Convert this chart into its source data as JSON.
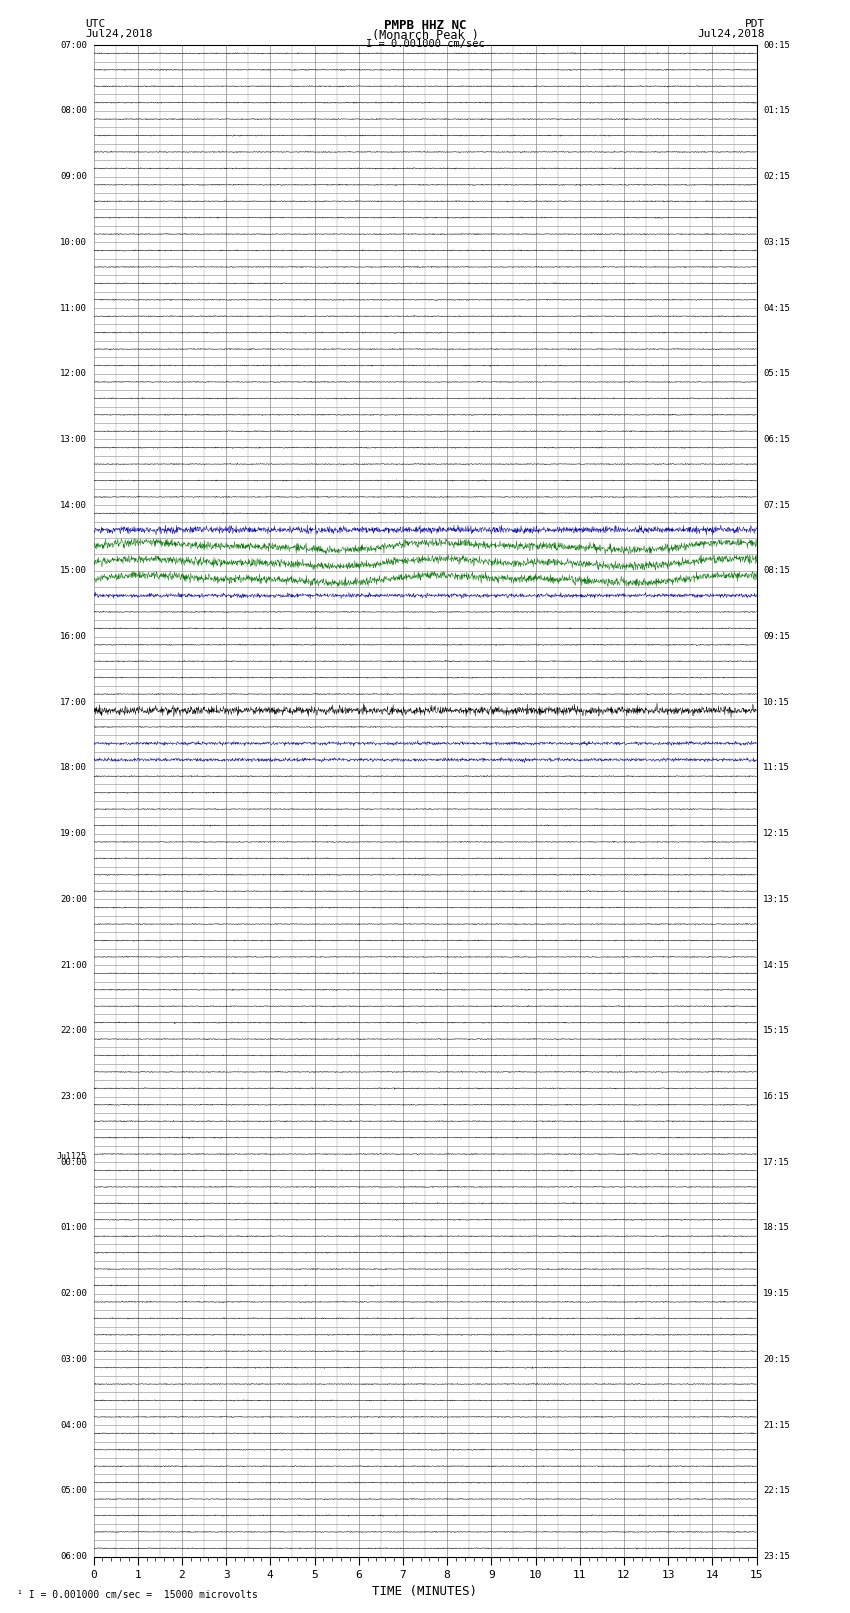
{
  "title_line1": "PMPB HHZ NC",
  "title_line2": "(Monarch Peak )",
  "scale_label": "I = 0.001000 cm/sec",
  "left_label_top": "UTC",
  "left_label_date": "Jul24,2018",
  "right_label_top": "PDT",
  "right_label_date": "Jul24,2018",
  "xlabel": "TIME (MINUTES)",
  "bottom_note": "¹ I = 0.001000 cm/sec =  15000 microvolts",
  "bg_color": "#ffffff",
  "grid_color": "#888888",
  "noise_color": "#000000",
  "event_color_blue": "#0000bb",
  "event_color_green": "#007700",
  "event_color_red": "#bb0000",
  "xmin": 0,
  "xmax": 15,
  "xticks": [
    0,
    1,
    2,
    3,
    4,
    5,
    6,
    7,
    8,
    9,
    10,
    11,
    12,
    13,
    14,
    15
  ],
  "n_rows": 92,
  "rows_per_hour": 4,
  "start_hour": 7,
  "end_hour": 30,
  "noise_amplitude": 0.035,
  "event1_row": 28,
  "event1_rows": 5,
  "event2_row": 40,
  "event2_rows": 3
}
